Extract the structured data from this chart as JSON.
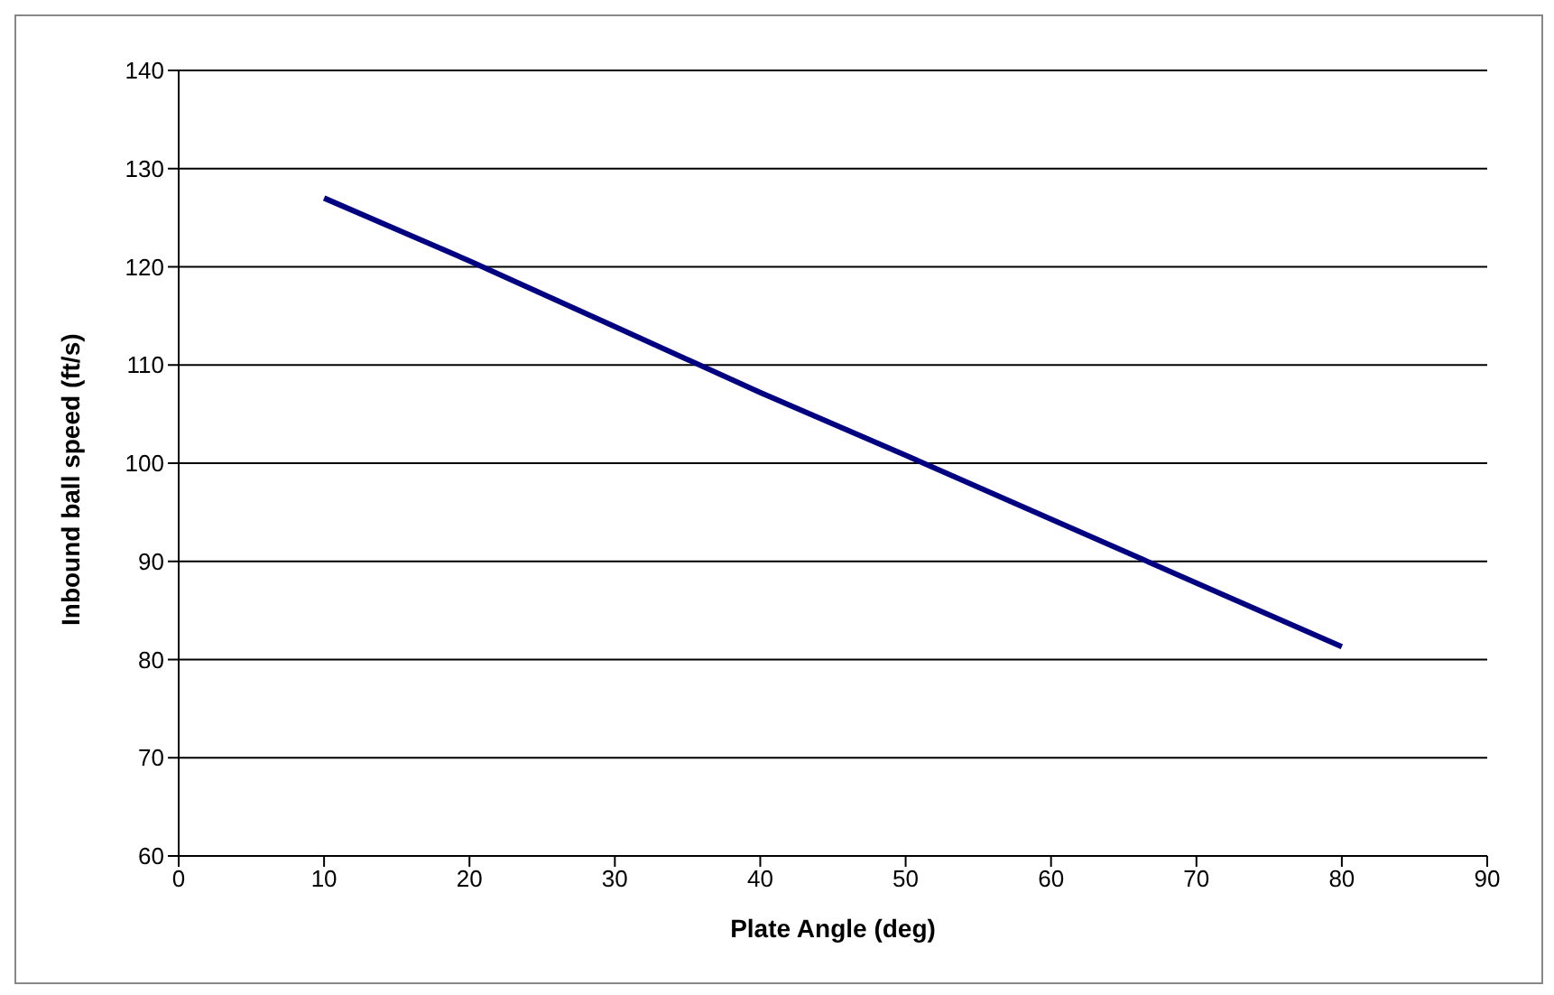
{
  "chart_data": {
    "type": "line",
    "xlabel": "Plate Angle (deg)",
    "ylabel": "Inbound ball speed (ft/s)",
    "x": [
      10,
      20,
      30,
      40,
      50,
      60,
      70,
      80
    ],
    "series": [
      {
        "color": "#000080",
        "values": [
          127,
          120.6,
          113.9,
          107.2,
          100.8,
          94.3,
          87.8,
          81.3
        ]
      }
    ],
    "xlim": [
      0,
      90
    ],
    "xticks": [
      0,
      10,
      20,
      30,
      40,
      50,
      60,
      70,
      80,
      90
    ],
    "ylim": [
      60,
      140
    ],
    "yticks": [
      60,
      70,
      80,
      90,
      100,
      110,
      120,
      130,
      140
    ],
    "grid": "y",
    "legend": false,
    "marker": "none",
    "line_style": "solid"
  }
}
